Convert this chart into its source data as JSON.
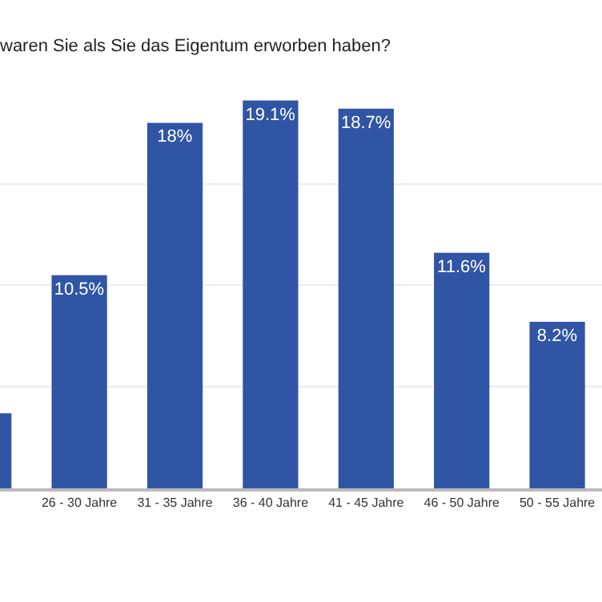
{
  "chart_data": {
    "type": "bar",
    "title": "waren Sie als Sie das Eigentum erworben haben?",
    "categories": [
      null,
      "26 - 30 Jahre",
      "31 - 35 Jahre",
      "36 - 40 Jahre",
      "41 - 45 Jahre",
      "46 - 50 Jahre",
      "50 - 55 Jahre"
    ],
    "values": [
      3.7,
      10.5,
      18,
      19.1,
      18.7,
      11.6,
      8.2
    ],
    "value_labels": [
      null,
      "10.5%",
      "18%",
      "19.1%",
      "18.7%",
      "11.6%",
      "8.2%"
    ],
    "color": "#3055a4",
    "yticks": [
      {
        "value": 0,
        "label": null
      },
      {
        "value": 5,
        "label": null
      },
      {
        "value": 10,
        "label": null
      },
      {
        "value": 15,
        "label": null
      }
    ],
    "grid": "y",
    "tick_labels": "x",
    "legend": false
  }
}
